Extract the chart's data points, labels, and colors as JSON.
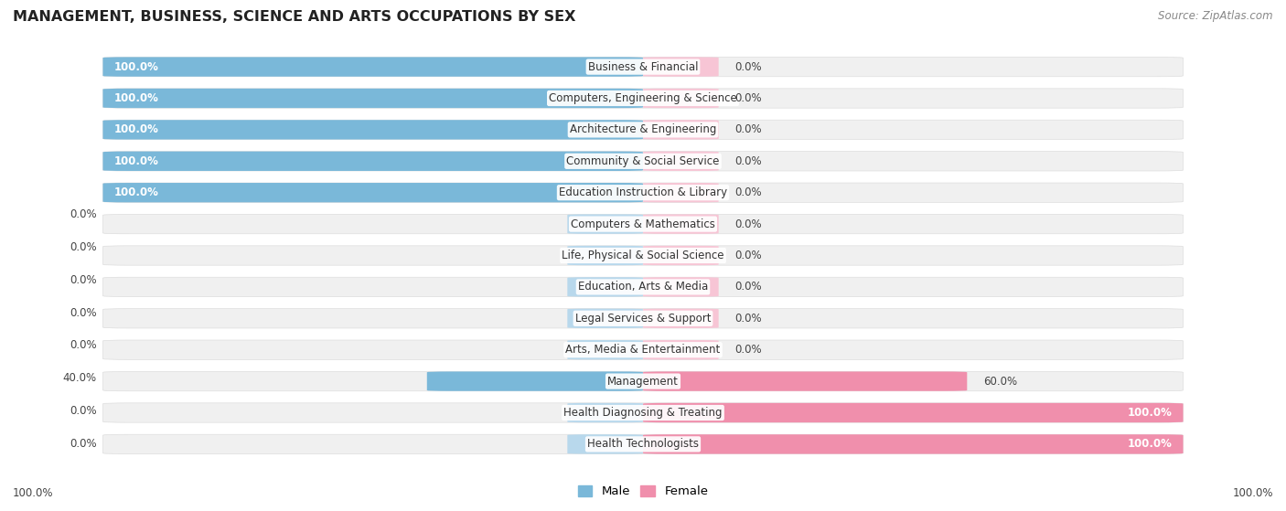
{
  "title": "MANAGEMENT, BUSINESS, SCIENCE AND ARTS OCCUPATIONS BY SEX",
  "source": "Source: ZipAtlas.com",
  "categories": [
    "Business & Financial",
    "Computers, Engineering & Science",
    "Architecture & Engineering",
    "Community & Social Service",
    "Education Instruction & Library",
    "Computers & Mathematics",
    "Life, Physical & Social Science",
    "Education, Arts & Media",
    "Legal Services & Support",
    "Arts, Media & Entertainment",
    "Management",
    "Health Diagnosing & Treating",
    "Health Technologists"
  ],
  "male": [
    100.0,
    100.0,
    100.0,
    100.0,
    100.0,
    0.0,
    0.0,
    0.0,
    0.0,
    0.0,
    40.0,
    0.0,
    0.0
  ],
  "female": [
    0.0,
    0.0,
    0.0,
    0.0,
    0.0,
    0.0,
    0.0,
    0.0,
    0.0,
    0.0,
    60.0,
    100.0,
    100.0
  ],
  "male_color": "#7ab8d9",
  "female_color": "#f08fac",
  "male_color_dim": "#b8d8ec",
  "female_color_dim": "#f7c5d5",
  "male_label": "Male",
  "female_label": "Female",
  "title_fontsize": 11.5,
  "source_fontsize": 8.5,
  "label_fontsize": 8.5,
  "pct_fontsize": 8.5,
  "legend_fontsize": 9.5
}
